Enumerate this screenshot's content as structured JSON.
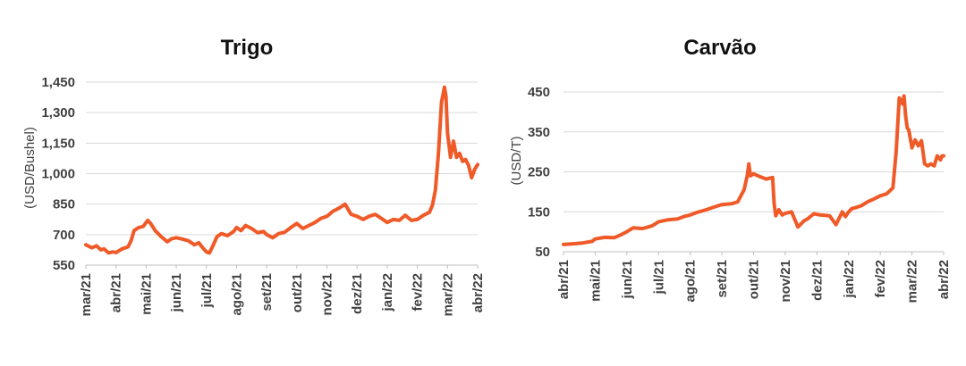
{
  "chart_data": [
    {
      "type": "line",
      "title": "Trigo",
      "ylabel": "(USD/Bushel)",
      "ylim": [
        550,
        1450
      ],
      "yticks": [
        "1,450",
        "1,300",
        "1,150",
        "1,000",
        "850",
        "700",
        "550"
      ],
      "ytick_values": [
        1450,
        1300,
        1150,
        1000,
        850,
        700,
        550
      ],
      "xticks": [
        "mar/21",
        "abr/21",
        "mai/21",
        "jun/21",
        "jul/21",
        "ago/21",
        "set/21",
        "out/21",
        "nov/21",
        "dez/21",
        "jan/22",
        "fev/22",
        "mar/22",
        "abr/22"
      ],
      "xlim": [
        0,
        13
      ],
      "grid": true,
      "color": "#F05A28",
      "series": [
        {
          "x": [
            0,
            0.2,
            0.35,
            0.5,
            0.6,
            0.75,
            0.9,
            1.0,
            1.2,
            1.4,
            1.5,
            1.6,
            1.75,
            1.9,
            2.05,
            2.15,
            2.3,
            2.5,
            2.7,
            2.85,
            3.0,
            3.2,
            3.4,
            3.6,
            3.75,
            3.85,
            4.0,
            4.1,
            4.2,
            4.35,
            4.5,
            4.7,
            4.9,
            5.0,
            5.15,
            5.3,
            5.5,
            5.7,
            5.9,
            6.0,
            6.2,
            6.4,
            6.6,
            6.8,
            7.0,
            7.2,
            7.4,
            7.6,
            7.8,
            8.0,
            8.2,
            8.4,
            8.6,
            8.8,
            9.0,
            9.2,
            9.4,
            9.6,
            9.8,
            10.0,
            10.2,
            10.4,
            10.6,
            10.8,
            11.0,
            11.2,
            11.4,
            11.5,
            11.6,
            11.7,
            11.8,
            11.9,
            11.95,
            12.0,
            12.1,
            12.2,
            12.3,
            12.4,
            12.5,
            12.6,
            12.7,
            12.8,
            12.9,
            13.0
          ],
          "values": [
            650,
            635,
            645,
            625,
            630,
            610,
            615,
            612,
            630,
            640,
            670,
            720,
            735,
            740,
            770,
            755,
            720,
            690,
            665,
            680,
            685,
            678,
            670,
            650,
            660,
            640,
            615,
            610,
            640,
            690,
            705,
            695,
            715,
            735,
            720,
            745,
            730,
            710,
            715,
            700,
            685,
            705,
            712,
            735,
            755,
            730,
            745,
            760,
            780,
            790,
            815,
            830,
            850,
            800,
            790,
            775,
            790,
            800,
            780,
            760,
            775,
            770,
            795,
            770,
            775,
            795,
            810,
            845,
            920,
            1100,
            1350,
            1425,
            1380,
            1200,
            1080,
            1160,
            1080,
            1100,
            1060,
            1070,
            1040,
            980,
            1020,
            1045
          ]
        }
      ]
    },
    {
      "type": "line",
      "title": "Carvão",
      "ylabel": "(USD/T)",
      "ylim": [
        50,
        450
      ],
      "yticks": [
        "450",
        "350",
        "250",
        "150",
        "50"
      ],
      "ytick_values": [
        450,
        350,
        250,
        150,
        50
      ],
      "xticks": [
        "abr/21",
        "mai/21",
        "jun/21",
        "jul/21",
        "ago/21",
        "set/21",
        "out/21",
        "nov/21",
        "dez/21",
        "jan/22",
        "fev/22",
        "mar/22",
        "abr/22"
      ],
      "xlim": [
        0,
        12
      ],
      "grid": true,
      "color": "#F05A28",
      "series": [
        {
          "x": [
            0,
            0.3,
            0.6,
            0.9,
            1.0,
            1.3,
            1.6,
            1.8,
            2.0,
            2.2,
            2.5,
            2.8,
            3.0,
            3.3,
            3.6,
            3.8,
            4.0,
            4.2,
            4.5,
            4.8,
            5.0,
            5.3,
            5.5,
            5.7,
            5.8,
            5.85,
            5.9,
            6.0,
            6.2,
            6.4,
            6.6,
            6.65,
            6.7,
            6.8,
            6.9,
            7.0,
            7.2,
            7.4,
            7.6,
            7.7,
            7.9,
            8.1,
            8.4,
            8.6,
            8.8,
            8.9,
            9.0,
            9.1,
            9.2,
            9.4,
            9.6,
            9.8,
            10.0,
            10.2,
            10.4,
            10.5,
            10.6,
            10.7,
            10.75,
            10.8,
            10.85,
            10.9,
            11.0,
            11.1,
            11.2,
            11.3,
            11.4,
            11.5,
            11.6,
            11.7,
            11.8,
            11.9,
            11.95,
            12.0
          ],
          "values": [
            68,
            70,
            72,
            76,
            82,
            86,
            85,
            92,
            100,
            110,
            108,
            115,
            125,
            130,
            132,
            138,
            142,
            148,
            155,
            163,
            168,
            170,
            175,
            205,
            240,
            270,
            240,
            245,
            238,
            232,
            236,
            170,
            140,
            155,
            142,
            146,
            150,
            112,
            128,
            132,
            145,
            142,
            140,
            118,
            150,
            138,
            150,
            158,
            160,
            165,
            175,
            182,
            190,
            195,
            210,
            300,
            435,
            420,
            440,
            390,
            360,
            355,
            310,
            330,
            315,
            328,
            270,
            265,
            270,
            265,
            290,
            280,
            290,
            290
          ]
        }
      ]
    }
  ]
}
